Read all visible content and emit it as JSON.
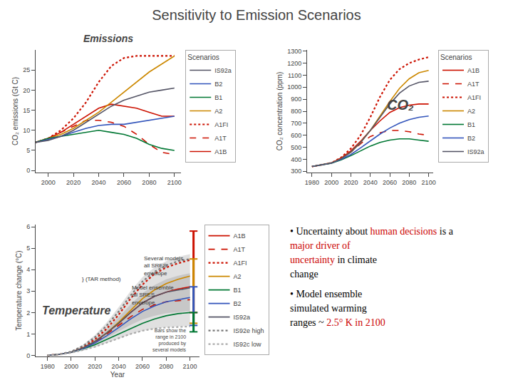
{
  "title": "Sensitivity to Emission Scenarios",
  "chart_data": [
    {
      "type": "line",
      "title": "Emissions",
      "ylabel": "CO₂ emissions (Gt C)",
      "x": [
        1990,
        2000,
        2010,
        2020,
        2030,
        2040,
        2050,
        2060,
        2070,
        2080,
        2090,
        2100
      ],
      "series": [
        {
          "name": "A1B",
          "color": "#cc1100",
          "line_style": "solid",
          "values": [
            7.0,
            8.0,
            9.5,
            11.5,
            13.5,
            15.5,
            16.5,
            16.0,
            15.5,
            14.5,
            13.5,
            13.5
          ]
        },
        {
          "name": "A1T",
          "color": "#cc1100",
          "line_style": "dashed",
          "values": [
            7.0,
            8.0,
            9.5,
            11.0,
            12.5,
            12.5,
            12.0,
            11.0,
            9.0,
            6.5,
            4.5,
            4.0
          ]
        },
        {
          "name": "A1FI",
          "color": "#cc1100",
          "line_style": "dotted",
          "values": [
            7.0,
            8.0,
            10.0,
            13.0,
            17.0,
            22.0,
            26.0,
            28.0,
            28.5,
            28.5,
            28.5,
            28.5
          ]
        },
        {
          "name": "A2",
          "color": "#cc8800",
          "line_style": "solid",
          "values": [
            7.0,
            8.0,
            9.0,
            10.5,
            12.5,
            14.5,
            17.0,
            19.5,
            22.0,
            24.5,
            26.5,
            28.5
          ]
        },
        {
          "name": "B1",
          "color": "#007733",
          "line_style": "solid",
          "values": [
            7.0,
            8.0,
            8.5,
            9.0,
            9.5,
            10.0,
            9.5,
            9.0,
            8.0,
            6.5,
            5.5,
            5.0
          ]
        },
        {
          "name": "B2",
          "color": "#3355bb",
          "line_style": "solid",
          "values": [
            7.0,
            7.8,
            8.5,
            9.5,
            10.5,
            11.2,
            11.5,
            11.5,
            12.0,
            12.5,
            13.0,
            13.5
          ]
        },
        {
          "name": "IS92a",
          "color": "#555566",
          "line_style": "solid",
          "values": [
            7.0,
            7.5,
            8.5,
            10.0,
            12.0,
            14.0,
            16.0,
            17.5,
            18.5,
            19.5,
            20.0,
            20.5
          ]
        }
      ],
      "xlim": [
        1990,
        2105
      ],
      "xticks": [
        2000,
        2020,
        2040,
        2060,
        2080,
        2100
      ],
      "ylim": [
        -0.5,
        30
      ],
      "yticks": [
        0,
        5,
        10,
        15,
        20,
        25
      ],
      "grid": false,
      "legend": "right",
      "legend_title": "Scenarios"
    },
    {
      "type": "line",
      "ylabel": "CO₂ concentration (ppm)",
      "x": [
        1980,
        1990,
        2000,
        2010,
        2020,
        2030,
        2040,
        2050,
        2060,
        2070,
        2080,
        2090,
        2100
      ],
      "series": [
        {
          "name": "A1B",
          "color": "#cc1100",
          "line_style": "solid",
          "values": [
            340,
            355,
            370,
            410,
            470,
            550,
            640,
            720,
            790,
            830,
            850,
            860,
            860
          ]
        },
        {
          "name": "A1T",
          "color": "#cc1100",
          "line_style": "dashed",
          "values": [
            340,
            355,
            370,
            410,
            460,
            530,
            590,
            620,
            640,
            640,
            630,
            610,
            600
          ]
        },
        {
          "name": "A1FI",
          "color": "#cc1100",
          "line_style": "dotted",
          "values": [
            340,
            355,
            370,
            415,
            490,
            600,
            750,
            920,
            1060,
            1150,
            1200,
            1230,
            1250
          ]
        },
        {
          "name": "A2",
          "color": "#cc8800",
          "line_style": "solid",
          "values": [
            340,
            355,
            370,
            405,
            460,
            540,
            640,
            760,
            880,
            990,
            1070,
            1120,
            1140
          ]
        },
        {
          "name": "B1",
          "color": "#007733",
          "line_style": "solid",
          "values": [
            340,
            355,
            368,
            395,
            430,
            470,
            510,
            540,
            560,
            570,
            570,
            560,
            550
          ]
        },
        {
          "name": "B2",
          "color": "#3355bb",
          "line_style": "solid",
          "values": [
            340,
            355,
            368,
            400,
            440,
            495,
            555,
            610,
            660,
            700,
            730,
            750,
            760
          ]
        },
        {
          "name": "IS92a",
          "color": "#555566",
          "line_style": "solid",
          "values": [
            340,
            355,
            368,
            405,
            460,
            540,
            640,
            750,
            860,
            950,
            1010,
            1040,
            1050
          ]
        }
      ],
      "xlim": [
        1975,
        2105
      ],
      "xticks": [
        1980,
        2000,
        2020,
        2040,
        2060,
        2080,
        2100
      ],
      "ylim": [
        290,
        1310
      ],
      "yticks": [
        300,
        400,
        500,
        600,
        700,
        800,
        900,
        1000,
        1100,
        1200,
        1300
      ],
      "grid": false,
      "legend": "right",
      "legend_title": "Scenarios",
      "annotations": [
        {
          "text": "CO₂"
        }
      ]
    },
    {
      "type": "line",
      "xlabel": "Year",
      "ylabel": "Temperature change (°C)",
      "x": [
        1980,
        1990,
        2000,
        2010,
        2020,
        2030,
        2040,
        2050,
        2060,
        2070,
        2080,
        2090,
        2100
      ],
      "series": [
        {
          "name": "A1B",
          "color": "#cc1100",
          "line_style": "solid",
          "values": [
            0.0,
            0.05,
            0.15,
            0.35,
            0.65,
            1.05,
            1.5,
            2.0,
            2.45,
            2.75,
            2.95,
            3.1,
            3.2
          ]
        },
        {
          "name": "A1T",
          "color": "#cc1100",
          "line_style": "dashed",
          "values": [
            0.0,
            0.05,
            0.15,
            0.35,
            0.6,
            1.0,
            1.4,
            1.8,
            2.15,
            2.35,
            2.5,
            2.55,
            2.6
          ]
        },
        {
          "name": "A1FI",
          "color": "#cc1100",
          "line_style": "dotted",
          "values": [
            0.0,
            0.05,
            0.15,
            0.4,
            0.75,
            1.25,
            1.9,
            2.65,
            3.3,
            3.8,
            4.1,
            4.3,
            4.45
          ]
        },
        {
          "name": "A2",
          "color": "#cc8800",
          "line_style": "solid",
          "values": [
            0.0,
            0.05,
            0.15,
            0.35,
            0.65,
            1.05,
            1.55,
            2.1,
            2.65,
            3.05,
            3.35,
            3.55,
            3.7
          ]
        },
        {
          "name": "B1",
          "color": "#007733",
          "line_style": "solid",
          "values": [
            0.0,
            0.05,
            0.15,
            0.3,
            0.5,
            0.75,
            1.0,
            1.25,
            1.5,
            1.7,
            1.85,
            1.95,
            2.0
          ]
        },
        {
          "name": "B2",
          "color": "#3355bb",
          "line_style": "solid",
          "values": [
            0.0,
            0.05,
            0.15,
            0.32,
            0.58,
            0.92,
            1.3,
            1.7,
            2.05,
            2.3,
            2.5,
            2.6,
            2.7
          ]
        },
        {
          "name": "IS92a",
          "color": "#555566",
          "line_style": "solid",
          "values": [
            0.0,
            0.05,
            0.15,
            0.35,
            0.65,
            1.05,
            1.5,
            2.0,
            2.45,
            2.75,
            2.95,
            3.05,
            3.15
          ]
        },
        {
          "name": "IS92e high",
          "color": "#777777",
          "line_style": "dotted",
          "values": [
            0.0,
            0.05,
            0.18,
            0.45,
            0.85,
            1.4,
            2.05,
            2.8,
            3.45,
            3.9,
            4.2,
            4.4,
            4.5
          ]
        },
        {
          "name": "IS92c low",
          "color": "#aaaaaa",
          "line_style": "dotted",
          "values": [
            0.0,
            0.04,
            0.12,
            0.25,
            0.4,
            0.6,
            0.8,
            1.0,
            1.15,
            1.25,
            1.3,
            1.32,
            1.35
          ]
        }
      ],
      "bands": [
        {
          "low": [
            0.0,
            0.04,
            0.1,
            0.22,
            0.38,
            0.58,
            0.78,
            0.98,
            1.15,
            1.25,
            1.32,
            1.35,
            1.38
          ],
          "high": [
            0.0,
            0.06,
            0.2,
            0.5,
            0.95,
            1.55,
            2.25,
            3.0,
            3.65,
            4.1,
            4.4,
            4.6,
            4.72
          ],
          "color": "#cccccc"
        },
        {
          "low": [
            0.0,
            0.04,
            0.13,
            0.3,
            0.52,
            0.82,
            1.12,
            1.42,
            1.68,
            1.85,
            1.97,
            2.02,
            2.07
          ],
          "high": [
            0.0,
            0.05,
            0.16,
            0.4,
            0.75,
            1.22,
            1.78,
            2.38,
            2.9,
            3.28,
            3.55,
            3.72,
            3.83
          ],
          "color": "#999999"
        }
      ],
      "ranges": [
        {
          "x": 2103,
          "low": 2.0,
          "high": 5.8,
          "color": "#cc1100"
        },
        {
          "x": 2103,
          "low": 1.5,
          "high": 4.5,
          "color": "#cc8800"
        },
        {
          "x": 2103,
          "low": 1.4,
          "high": 3.2,
          "color": "#3355bb"
        },
        {
          "x": 2103,
          "low": 1.1,
          "high": 2.0,
          "color": "#007733"
        }
      ],
      "xlim": [
        1970,
        2108
      ],
      "xticks": [
        1980,
        2000,
        2020,
        2040,
        2060,
        2080,
        2100
      ],
      "ylim": [
        -0.05,
        6.1
      ],
      "yticks": [
        0,
        1,
        2,
        3,
        4,
        5,
        6
      ],
      "grid": false,
      "legend": "right",
      "annotations": [
        {
          "text": "} (TAR method)",
          "x": 2008,
          "y": 3.55
        },
        {
          "text": "Several models\nall SRES\nenvelope",
          "x": 2060,
          "y": 3.6
        },
        {
          "text": "Model ensemble\nall SRES\nenvelope",
          "x": 2050,
          "y": 2.8,
          "arrow_x": 2058,
          "arrow_y": 2.3
        },
        {
          "text": "Bars show the\nrange in 2100\nproduced by\nseveral models"
        },
        {
          "text": "Temperature"
        }
      ]
    }
  ],
  "annotations": [
    {
      "segments": [
        {
          "text": "• Uncertainty about ",
          "color": "#000000"
        },
        {
          "text": "human decisions",
          "color": "#cc0000"
        },
        {
          "text": " is a",
          "color": "#000000"
        }
      ]
    },
    {
      "segments": [
        {
          "text": "major driver of",
          "color": "#cc0000"
        }
      ]
    },
    {
      "segments": [
        {
          "text": "uncertainty",
          "color": "#cc0000"
        },
        {
          "text": " in climate",
          "color": "#000000"
        }
      ]
    },
    {
      "segments": [
        {
          "text": "change",
          "color": "#000000"
        }
      ]
    },
    {
      "segments": [
        {
          "text": "• Model ensemble",
          "color": "#000000"
        }
      ]
    },
    {
      "segments": [
        {
          "text": "simulated warming",
          "color": "#000000"
        }
      ]
    },
    {
      "segments": [
        {
          "text": "ranges ~ ",
          "color": "#000000"
        },
        {
          "text": "2.5° K in 2100",
          "color": "#cc0000"
        }
      ]
    }
  ]
}
